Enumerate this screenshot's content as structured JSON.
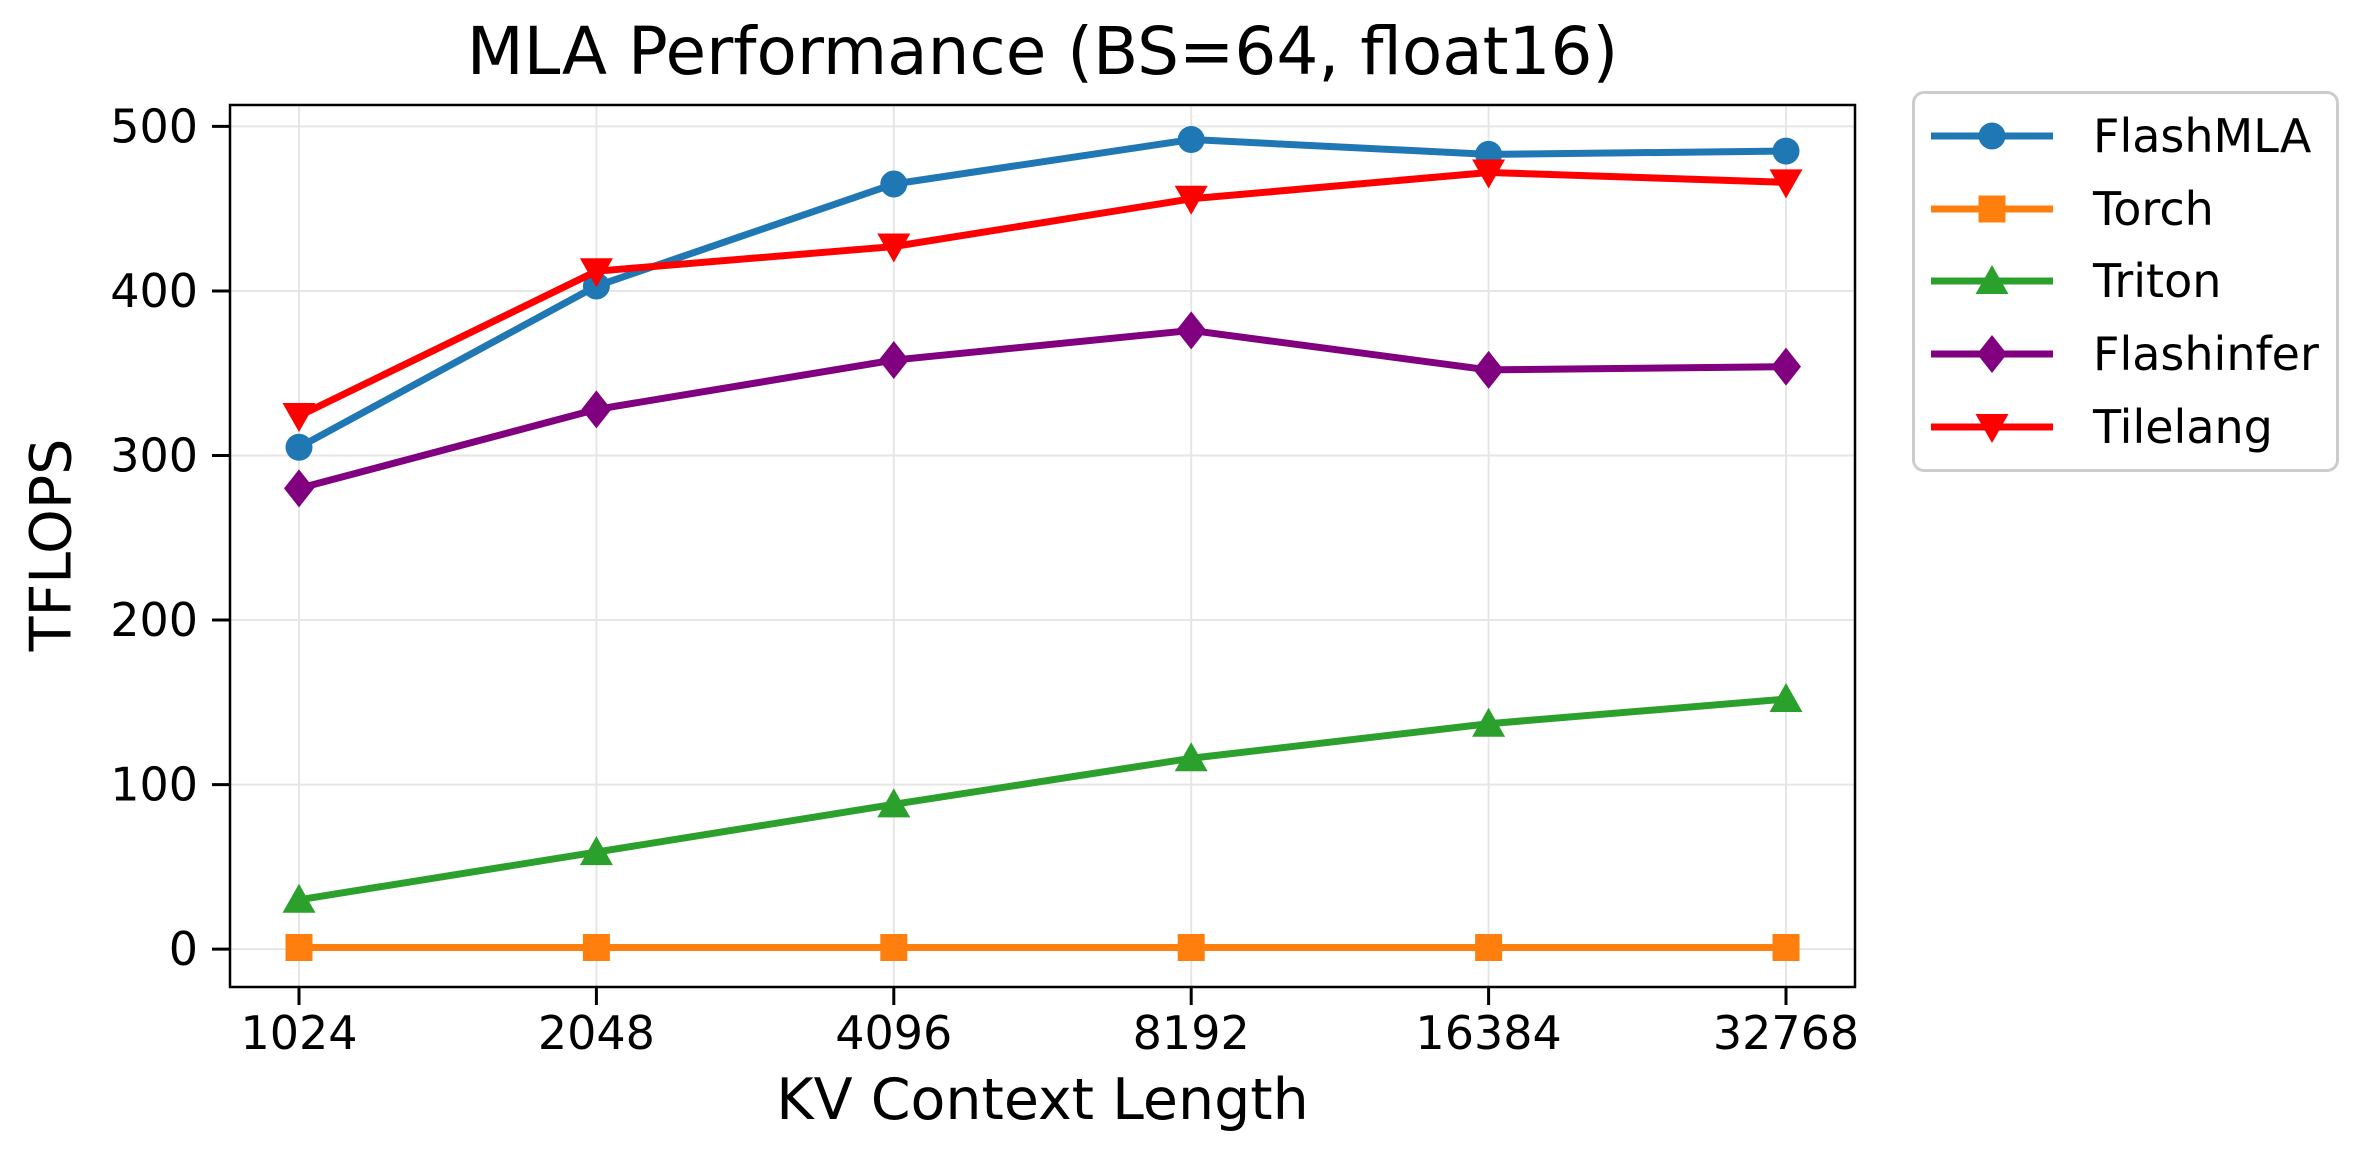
{
  "chart_data": {
    "type": "line",
    "title": "MLA Performance (BS=64, float16)",
    "xlabel": "KV Context Length",
    "ylabel": "TFLOPS",
    "categories": [
      "1024",
      "2048",
      "4096",
      "8192",
      "16384",
      "32768"
    ],
    "yticks": [
      0,
      100,
      200,
      300,
      400,
      500
    ],
    "ylim": [
      -23,
      513
    ],
    "grid": true,
    "legend_position": "outside-right",
    "background": "#ffffff",
    "axis_color": "#000000",
    "grid_color": "#e6e6e6",
    "legend_border_color": "#cccccc",
    "series": [
      {
        "name": "FlashMLA",
        "color": "#1f77b4",
        "marker": "circle",
        "values": [
          305,
          403,
          465,
          492,
          483,
          485
        ]
      },
      {
        "name": "Torch",
        "color": "#ff7f0e",
        "marker": "square",
        "values": [
          1,
          1,
          1,
          1,
          1,
          1
        ]
      },
      {
        "name": "Triton",
        "color": "#2ca02c",
        "marker": "triangle-up",
        "values": [
          30,
          59,
          88,
          116,
          137,
          152
        ]
      },
      {
        "name": "Flashinfer",
        "color": "#800080",
        "marker": "diamond",
        "values": [
          280,
          328,
          358,
          376,
          352,
          354
        ]
      },
      {
        "name": "Tilelang",
        "color": "#ff0000",
        "marker": "triangle-down",
        "values": [
          324,
          412,
          427,
          456,
          472,
          466
        ]
      }
    ]
  }
}
